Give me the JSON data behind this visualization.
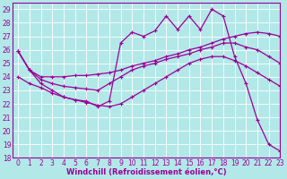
{
  "xlabel": "Windchill (Refroidissement éolien,°C)",
  "xlim": [
    -0.5,
    23
  ],
  "ylim": [
    18,
    29.5
  ],
  "yticks": [
    18,
    19,
    20,
    21,
    22,
    23,
    24,
    25,
    26,
    27,
    28,
    29
  ],
  "xticks": [
    0,
    1,
    2,
    3,
    4,
    5,
    6,
    7,
    8,
    9,
    10,
    11,
    12,
    13,
    14,
    15,
    16,
    17,
    18,
    19,
    20,
    21,
    22,
    23
  ],
  "background_color": "#b3e8e8",
  "grid_color": "#ffffff",
  "line_color": "#990099",
  "lines": [
    {
      "x": [
        0,
        1,
        2,
        3,
        4,
        5,
        6,
        7,
        8,
        9,
        10,
        11,
        12,
        13,
        14,
        15,
        16,
        17,
        18,
        19,
        20,
        21,
        22,
        23
      ],
      "y": [
        25.9,
        24.5,
        23.5,
        23.0,
        22.5,
        22.3,
        22.2,
        21.8,
        22.2,
        26.5,
        27.3,
        27.0,
        27.4,
        28.5,
        27.5,
        28.5,
        27.5,
        29.0,
        28.5,
        25.5,
        23.5,
        20.8,
        19.0,
        18.5
      ]
    },
    {
      "x": [
        0,
        1,
        2,
        3,
        4,
        5,
        6,
        7,
        8,
        9,
        10,
        11,
        12,
        13,
        14,
        15,
        16,
        17,
        18,
        19,
        20,
        21,
        22,
        23
      ],
      "y": [
        25.9,
        24.5,
        24.0,
        24.0,
        24.0,
        24.1,
        24.1,
        24.2,
        24.3,
        24.5,
        24.8,
        25.0,
        25.2,
        25.5,
        25.7,
        26.0,
        26.2,
        26.5,
        26.8,
        27.0,
        27.2,
        27.3,
        27.2,
        27.0
      ]
    },
    {
      "x": [
        0,
        1,
        2,
        3,
        4,
        5,
        6,
        7,
        8,
        9,
        10,
        11,
        12,
        13,
        14,
        15,
        16,
        17,
        18,
        19,
        20,
        21,
        22,
        23
      ],
      "y": [
        25.9,
        24.5,
        23.8,
        23.5,
        23.3,
        23.2,
        23.1,
        23.0,
        23.5,
        24.0,
        24.5,
        24.8,
        25.0,
        25.3,
        25.5,
        25.7,
        26.0,
        26.2,
        26.5,
        26.5,
        26.2,
        26.0,
        25.5,
        25.0
      ]
    },
    {
      "x": [
        0,
        1,
        2,
        3,
        4,
        5,
        6,
        7,
        8,
        9,
        10,
        11,
        12,
        13,
        14,
        15,
        16,
        17,
        18,
        19,
        20,
        21,
        22,
        23
      ],
      "y": [
        24.0,
        23.5,
        23.2,
        22.8,
        22.5,
        22.3,
        22.1,
        21.9,
        21.8,
        22.0,
        22.5,
        23.0,
        23.5,
        24.0,
        24.5,
        25.0,
        25.3,
        25.5,
        25.5,
        25.2,
        24.8,
        24.3,
        23.8,
        23.3
      ]
    }
  ],
  "marker": "+",
  "markersize": 3.5,
  "linewidth": 0.9,
  "fontsize_ticks": 5.5,
  "fontsize_label": 6.0
}
